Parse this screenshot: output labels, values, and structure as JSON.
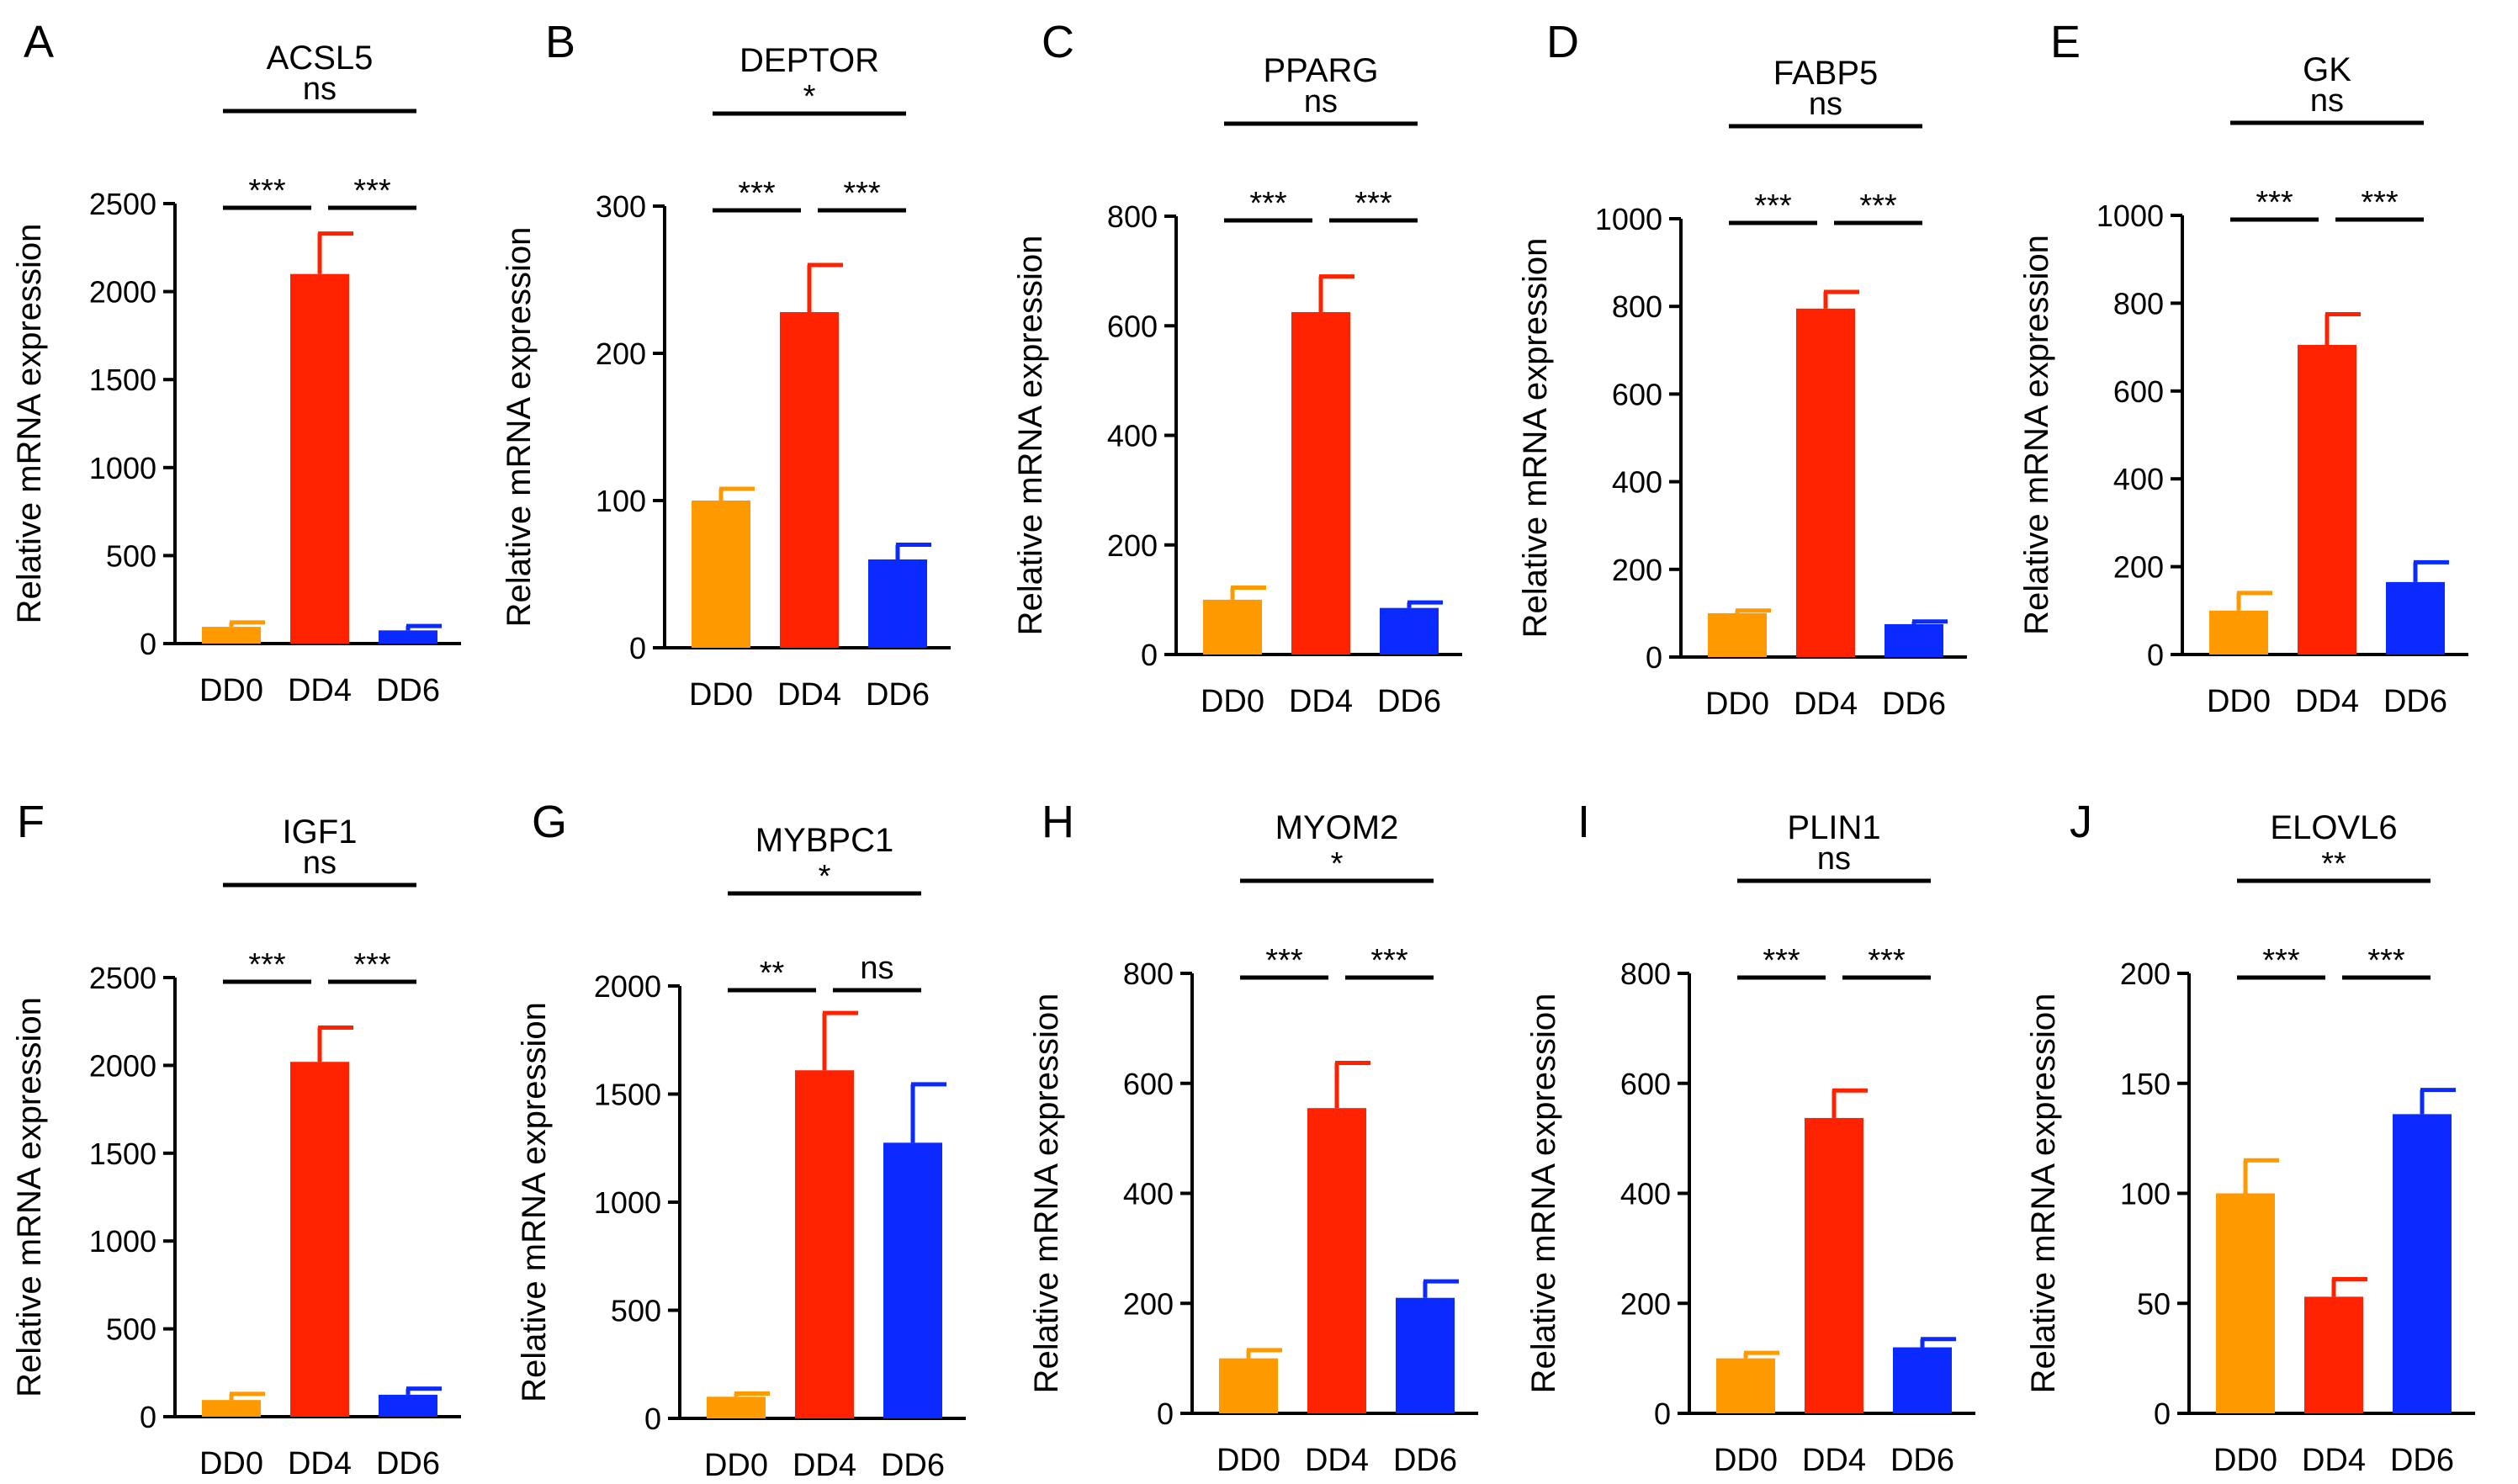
{
  "colors": {
    "DD0": "#FF9900",
    "DD4": "#FF2200",
    "DD6": "#0A2AFF",
    "axis": "#000000"
  },
  "chart_data": [
    {
      "panel": "A",
      "type": "bar",
      "title": "ACSL5",
      "ylabel": "Relative mRNA expression",
      "categories": [
        "DD0",
        "DD4",
        "DD6"
      ],
      "values": [
        95,
        2100,
        75
      ],
      "errors": [
        25,
        230,
        25
      ],
      "ylim": [
        0,
        2500
      ],
      "yticks": [
        0,
        500,
        1000,
        1500,
        2000,
        2500
      ],
      "significance": [
        {
          "from": 0,
          "to": 1,
          "label": "***"
        },
        {
          "from": 1,
          "to": 2,
          "label": "***"
        },
        {
          "from": 0,
          "to": 2,
          "label": "ns"
        }
      ]
    },
    {
      "panel": "B",
      "type": "bar",
      "title": "DEPTOR",
      "ylabel": "Relative mRNA expression",
      "categories": [
        "DD0",
        "DD4",
        "DD6"
      ],
      "values": [
        100,
        228,
        60
      ],
      "errors": [
        8,
        32,
        10
      ],
      "ylim": [
        0,
        300
      ],
      "yticks": [
        0,
        100,
        200,
        300
      ],
      "significance": [
        {
          "from": 0,
          "to": 1,
          "label": "***"
        },
        {
          "from": 1,
          "to": 2,
          "label": "***"
        },
        {
          "from": 0,
          "to": 2,
          "label": "*"
        }
      ]
    },
    {
      "panel": "C",
      "type": "bar",
      "title": "PPARG",
      "ylabel": "Relative mRNA expression",
      "categories": [
        "DD0",
        "DD4",
        "DD6"
      ],
      "values": [
        100,
        625,
        85
      ],
      "errors": [
        22,
        65,
        10
      ],
      "ylim": [
        0,
        800
      ],
      "yticks": [
        0,
        200,
        400,
        600,
        800
      ],
      "significance": [
        {
          "from": 0,
          "to": 1,
          "label": "***"
        },
        {
          "from": 1,
          "to": 2,
          "label": "***"
        },
        {
          "from": 0,
          "to": 2,
          "label": "ns"
        }
      ]
    },
    {
      "panel": "D",
      "type": "bar",
      "title": "FABP5",
      "ylabel": "Relative mRNA expression",
      "categories": [
        "DD0",
        "DD4",
        "DD6"
      ],
      "values": [
        100,
        795,
        75
      ],
      "errors": [
        6,
        38,
        6
      ],
      "ylim": [
        0,
        1000
      ],
      "yticks": [
        0,
        200,
        400,
        600,
        800,
        1000
      ],
      "significance": [
        {
          "from": 0,
          "to": 1,
          "label": "***"
        },
        {
          "from": 1,
          "to": 2,
          "label": "***"
        },
        {
          "from": 0,
          "to": 2,
          "label": "ns"
        }
      ]
    },
    {
      "panel": "E",
      "type": "bar",
      "title": "GK",
      "ylabel": "Relative mRNA expression",
      "categories": [
        "DD0",
        "DD4",
        "DD6"
      ],
      "values": [
        100,
        705,
        165
      ],
      "errors": [
        40,
        70,
        45
      ],
      "ylim": [
        0,
        1000
      ],
      "yticks": [
        0,
        200,
        400,
        600,
        800,
        1000
      ],
      "significance": [
        {
          "from": 0,
          "to": 1,
          "label": "***"
        },
        {
          "from": 1,
          "to": 2,
          "label": "***"
        },
        {
          "from": 0,
          "to": 2,
          "label": "ns"
        }
      ]
    },
    {
      "panel": "F",
      "type": "bar",
      "title": "IGF1",
      "ylabel": "Relative mRNA expression",
      "categories": [
        "DD0",
        "DD4",
        "DD6"
      ],
      "values": [
        95,
        2020,
        125
      ],
      "errors": [
        35,
        195,
        35
      ],
      "ylim": [
        0,
        2500
      ],
      "yticks": [
        0,
        500,
        1000,
        1500,
        2000,
        2500
      ],
      "significance": [
        {
          "from": 0,
          "to": 1,
          "label": "***"
        },
        {
          "from": 1,
          "to": 2,
          "label": "***"
        },
        {
          "from": 0,
          "to": 2,
          "label": "ns"
        }
      ]
    },
    {
      "panel": "G",
      "type": "bar",
      "title": "MYBPC1",
      "ylabel": "Relative mRNA expression",
      "categories": [
        "DD0",
        "DD4",
        "DD6"
      ],
      "values": [
        100,
        1610,
        1275
      ],
      "errors": [
        15,
        265,
        270
      ],
      "ylim": [
        0,
        2000
      ],
      "yticks": [
        0,
        500,
        1000,
        1500,
        2000
      ],
      "significance": [
        {
          "from": 0,
          "to": 1,
          "label": "**"
        },
        {
          "from": 1,
          "to": 2,
          "label": "ns"
        },
        {
          "from": 0,
          "to": 2,
          "label": "*"
        }
      ]
    },
    {
      "panel": "H",
      "type": "bar",
      "title": "MYOM2",
      "ylabel": "Relative mRNA expression",
      "categories": [
        "DD0",
        "DD4",
        "DD6"
      ],
      "values": [
        100,
        555,
        210
      ],
      "errors": [
        15,
        82,
        30
      ],
      "ylim": [
        0,
        800
      ],
      "yticks": [
        0,
        200,
        400,
        600,
        800
      ],
      "significance": [
        {
          "from": 0,
          "to": 1,
          "label": "***"
        },
        {
          "from": 1,
          "to": 2,
          "label": "***"
        },
        {
          "from": 0,
          "to": 2,
          "label": "*"
        }
      ]
    },
    {
      "panel": "I",
      "type": "bar",
      "title": "PLIN1",
      "ylabel": "Relative mRNA expression",
      "categories": [
        "DD0",
        "DD4",
        "DD6"
      ],
      "values": [
        100,
        537,
        120
      ],
      "errors": [
        10,
        50,
        15
      ],
      "ylim": [
        0,
        800
      ],
      "yticks": [
        0,
        200,
        400,
        600,
        800
      ],
      "significance": [
        {
          "from": 0,
          "to": 1,
          "label": "***"
        },
        {
          "from": 1,
          "to": 2,
          "label": "***"
        },
        {
          "from": 0,
          "to": 2,
          "label": "ns"
        }
      ]
    },
    {
      "panel": "J",
      "type": "bar",
      "title": "ELOVL6",
      "ylabel": "Relative mRNA expression",
      "categories": [
        "DD0",
        "DD4",
        "DD6"
      ],
      "values": [
        100,
        53,
        136
      ],
      "errors": [
        15,
        8,
        11
      ],
      "ylim": [
        0,
        200
      ],
      "yticks": [
        0,
        50,
        100,
        150,
        200
      ],
      "significance": [
        {
          "from": 0,
          "to": 1,
          "label": "***"
        },
        {
          "from": 1,
          "to": 2,
          "label": "***"
        },
        {
          "from": 0,
          "to": 2,
          "label": "**"
        }
      ]
    }
  ]
}
